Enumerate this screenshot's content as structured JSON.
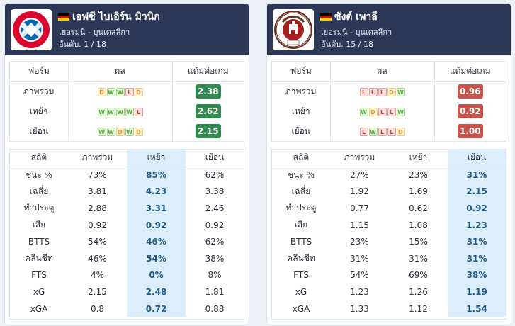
{
  "colors": {
    "header_bg": "#2b3856",
    "good": "#2e8b4d",
    "bad": "#c9534b",
    "highlight": "#dcedfb"
  },
  "teams": [
    {
      "name": "เอฟซี ไบเอิร์น มิวนิก",
      "league": "เยอรมนี - บุนเดสลีกา",
      "rank": "อันดับ. 1 / 18",
      "logo": "bayern-logo",
      "form_headers": [
        "ฟอร์ม",
        "ผล",
        "แต้มต่อเกม"
      ],
      "form": [
        {
          "label": "ภาพรวม",
          "results": [
            "D",
            "W",
            "W",
            "L",
            "D"
          ],
          "ppg": "2.38",
          "ppg_color": "#2e8b4d"
        },
        {
          "label": "เหย้า",
          "results": [
            "W",
            "W",
            "W",
            "W",
            "L"
          ],
          "ppg": "2.62",
          "ppg_color": "#2e8b4d"
        },
        {
          "label": "เยือน",
          "results": [
            "W",
            "W",
            "D",
            "W",
            "D"
          ],
          "ppg": "2.15",
          "ppg_color": "#2e8b4d"
        }
      ],
      "stats_headers": [
        "สถิติ",
        "ภาพรวม",
        "เหย้า",
        "เยือน"
      ],
      "highlight_col": 2,
      "stats": [
        [
          "ชนะ %",
          "73%",
          "85%",
          "62%"
        ],
        [
          "เฉลี่ย",
          "3.81",
          "4.23",
          "3.38"
        ],
        [
          "ทำประตู",
          "2.88",
          "3.31",
          "2.46"
        ],
        [
          "เสีย",
          "0.92",
          "0.92",
          "0.92"
        ],
        [
          "BTTS",
          "54%",
          "46%",
          "62%"
        ],
        [
          "คลีนชีท",
          "46%",
          "54%",
          "38%"
        ],
        [
          "FTS",
          "4%",
          "0%",
          "8%"
        ],
        [
          "xG",
          "2.15",
          "2.48",
          "1.81"
        ],
        [
          "xGA",
          "0.8",
          "0.72",
          "0.88"
        ]
      ]
    },
    {
      "name": "ซังต์ เพาลี",
      "league": "เยอรมนี - บุนเดสลีกา",
      "rank": "อันดับ. 15 / 18",
      "logo": "st-pauli-logo",
      "form_headers": [
        "ฟอร์ม",
        "ผล",
        "แต้มต่อเกม"
      ],
      "form": [
        {
          "label": "ภาพรวม",
          "results": [
            "L",
            "L",
            "L",
            "D",
            "W"
          ],
          "ppg": "0.96",
          "ppg_color": "#c9534b"
        },
        {
          "label": "เหย้า",
          "results": [
            "W",
            "D",
            "L",
            "L",
            "W"
          ],
          "ppg": "0.92",
          "ppg_color": "#c9534b"
        },
        {
          "label": "เยือน",
          "results": [
            "L",
            "W",
            "L",
            "L",
            "D"
          ],
          "ppg": "1.00",
          "ppg_color": "#c9534b"
        }
      ],
      "stats_headers": [
        "สถิติ",
        "ภาพรวม",
        "เหย้า",
        "เยือน"
      ],
      "highlight_col": 3,
      "stats": [
        [
          "ชนะ %",
          "27%",
          "23%",
          "31%"
        ],
        [
          "เฉลี่ย",
          "1.92",
          "1.69",
          "2.15"
        ],
        [
          "ทำประตู",
          "0.77",
          "0.62",
          "0.92"
        ],
        [
          "เสีย",
          "1.15",
          "1.08",
          "1.23"
        ],
        [
          "BTTS",
          "23%",
          "15%",
          "31%"
        ],
        [
          "คลีนชีท",
          "31%",
          "31%",
          "31%"
        ],
        [
          "FTS",
          "54%",
          "69%",
          "38%"
        ],
        [
          "xG",
          "1.23",
          "1.26",
          "1.19"
        ],
        [
          "xGA",
          "1.33",
          "1.12",
          "1.54"
        ]
      ]
    }
  ]
}
